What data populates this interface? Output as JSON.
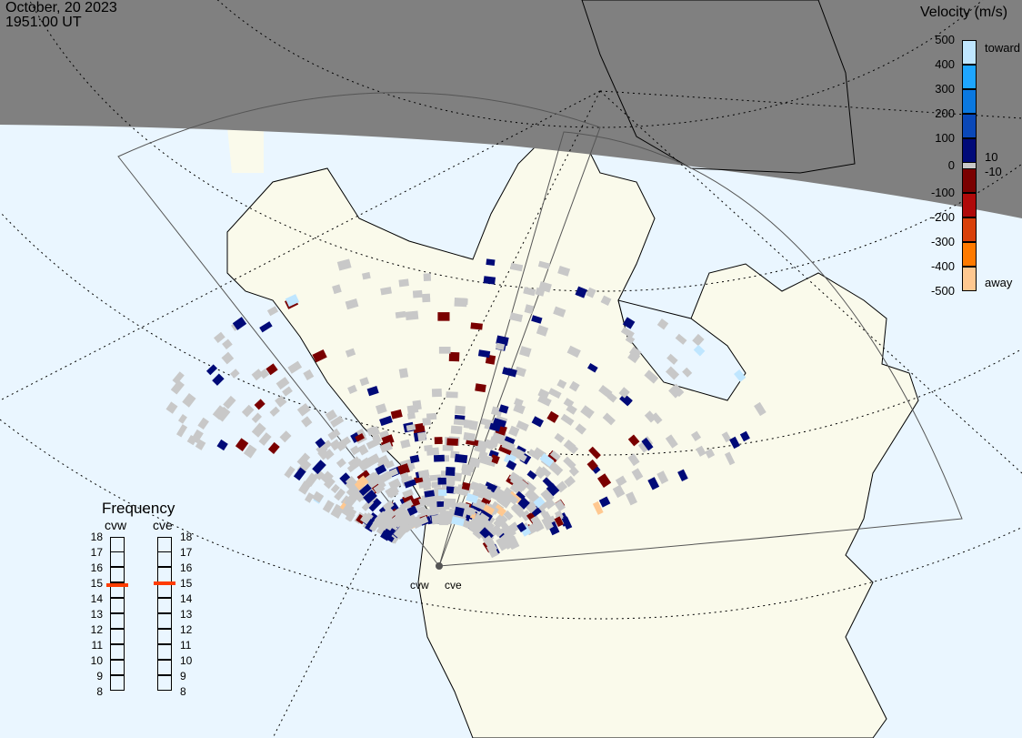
{
  "header": {
    "date": "October, 20 2023",
    "time": "1951:00 UT"
  },
  "colorbar": {
    "title": "Velocity (m/s)",
    "ticks": [
      "500",
      "400",
      "300",
      "200",
      "100",
      "0",
      "-100",
      "-200",
      "-300",
      "-400",
      "-500"
    ],
    "upper_label": "toward",
    "lower_label": "away",
    "ground_scatter_upper": "10",
    "ground_scatter_lower": "-10",
    "colors": [
      "#bfe6ff",
      "#1ea6ff",
      "#0a78e0",
      "#0a48b8",
      "#000a78",
      "#7a0000",
      "#b00a0a",
      "#d8400a",
      "#ff7a00",
      "#ffc890"
    ],
    "ground_scatter_color": "#c8c8c8"
  },
  "frequency": {
    "title": "Frequency",
    "unit_range": [
      8,
      18
    ],
    "ticks": [
      "18",
      "17",
      "16",
      "15",
      "14",
      "13",
      "12",
      "11",
      "10",
      "9",
      "8"
    ],
    "radars": [
      {
        "name": "cvw",
        "frequency_mhz": 14.9
      },
      {
        "name": "cve",
        "frequency_mhz": 15.0
      }
    ],
    "indicator_color": "#ff3c00"
  },
  "map": {
    "radar_labels": [
      "cvw",
      "cve"
    ],
    "night_color": "#808080",
    "ocean_color": "#eaf6ff",
    "land_color": "#fafaeb"
  }
}
